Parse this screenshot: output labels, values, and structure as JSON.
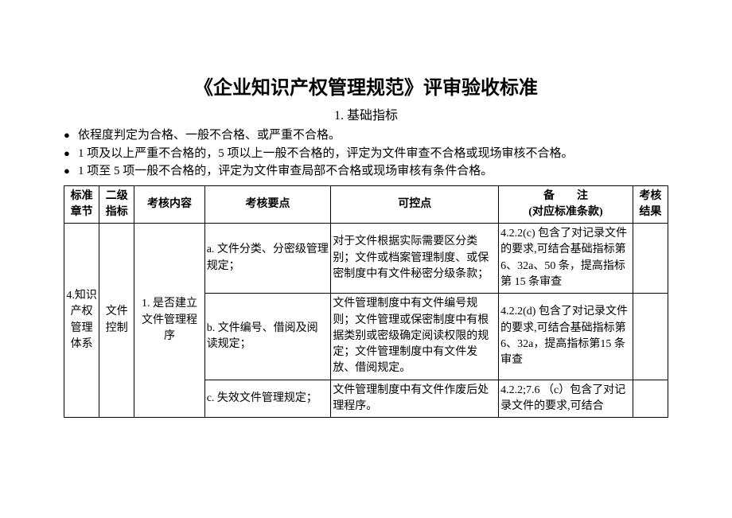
{
  "title": "《企业知识产权管理规范》评审验收标准",
  "subtitle": "1. 基础指标",
  "bullets": [
    "依程度判定为合格、一般不合格、或严重不合格。",
    "1 项及以上严重不合格的，5 项以上一般不合格的，评定为文件审查不合格或现场审核不合格。",
    "1 项至 5 项一般不合格的，评定为文件审查局部不合格或现场审核有条件合格。"
  ],
  "headers": {
    "chapter": "标准章节",
    "level2": "二级指标",
    "content": "考核内容",
    "point": "考核要点",
    "control": "可控点",
    "note_line1": "备　　注",
    "note_line2": "(对应标准条款)",
    "result": "考核结果"
  },
  "chapter": "4.知识产权管理体系",
  "level2": "文件控制",
  "content": "1. 是否建立文件管理程序",
  "rows": [
    {
      "point": "a. 文件分类、分密级管理规定；",
      "control": "对于文件根据实际需要区分类别；文件或档案管理制度、或保密制度中有文件秘密分级条款；",
      "note": "4.2.2(c)\n包含了对记录文件的要求,可结合基础指标第 6、32a、50 条，提高指标第 15 条审查"
    },
    {
      "point": "b. 文件编号、借阅及阅读规定；",
      "control": "文件管理制度中有文件编号规则；文件管理或保密制度中有根据类别或密级确定阅读权限的规定；文件管理制度中有文件发放、借阅规定。",
      "note": "4.2.2(d)\n包含了对记录文件的要求,可结合基础指标第 6、32a，提高指标第15 条审查"
    },
    {
      "point": "c. 失效文件管理规定；",
      "control": "文件管理制度中有文件作废后处理程序。",
      "note": "4.2.2;7.6 （c）包含了对记录文件的要求,可结合"
    }
  ]
}
